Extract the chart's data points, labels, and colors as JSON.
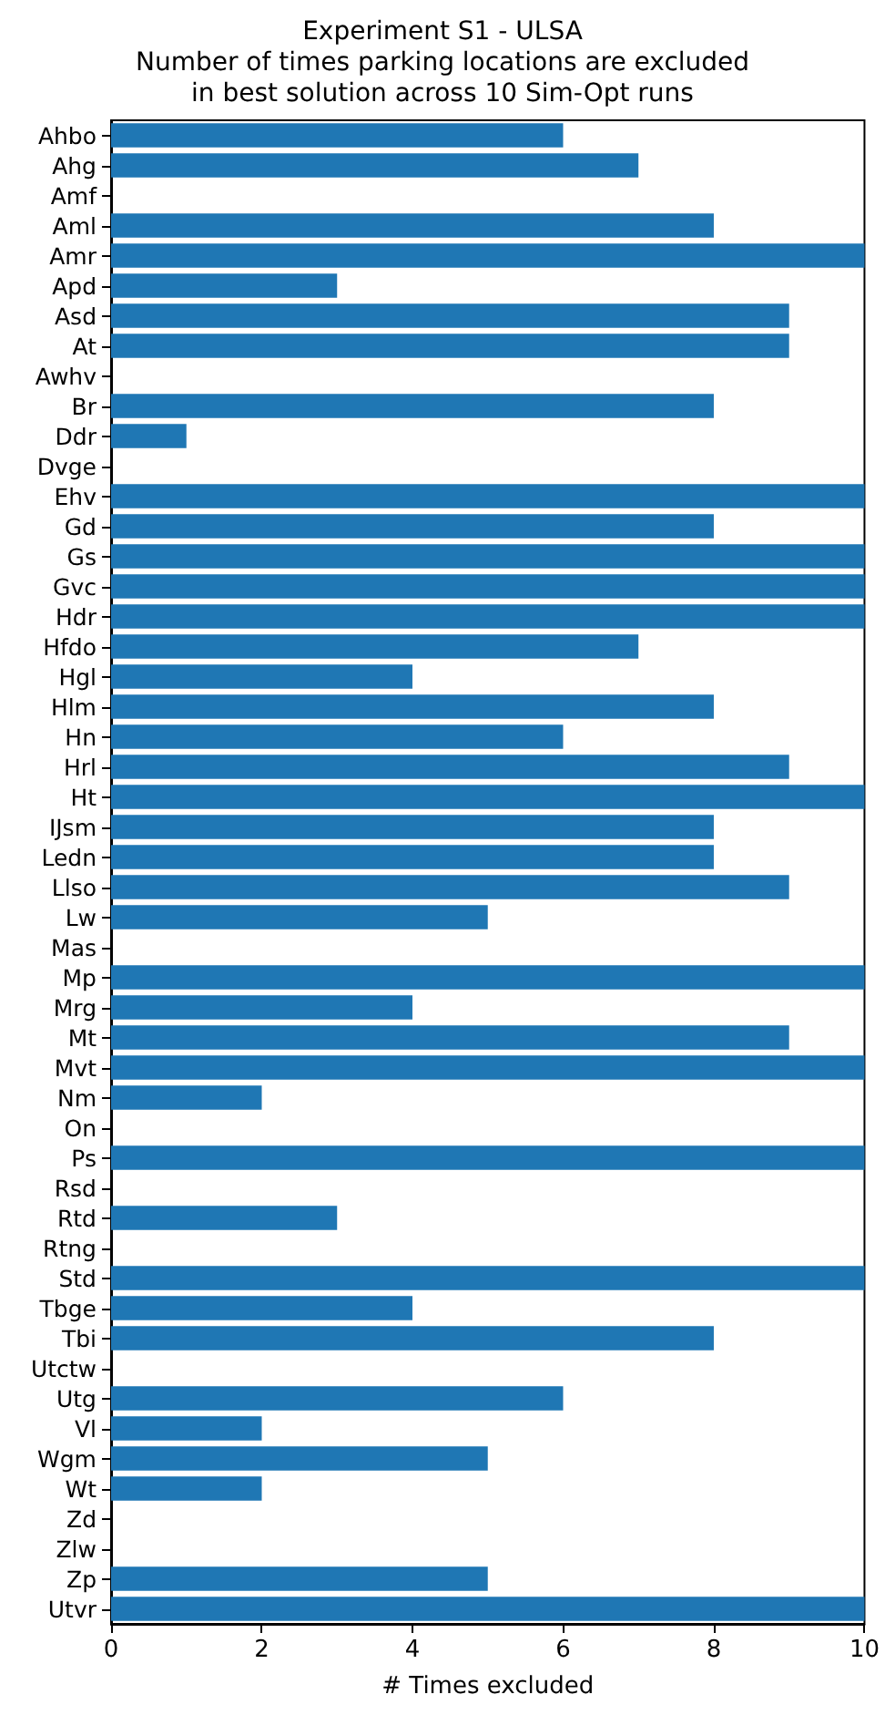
{
  "chart_data": {
    "type": "bar",
    "orientation": "horizontal",
    "title": "Experiment S1 - ULSA\nNumber of times parking locations are excluded\nin best solution across 10 Sim-Opt runs",
    "xlabel": "# Times excluded",
    "categories": [
      "Ahbo",
      "Ahg",
      "Amf",
      "Aml",
      "Amr",
      "Apd",
      "Asd",
      "At",
      "Awhv",
      "Br",
      "Ddr",
      "Dvge",
      "Ehv",
      "Gd",
      "Gs",
      "Gvc",
      "Hdr",
      "Hfdo",
      "Hgl",
      "Hlm",
      "Hn",
      "Hrl",
      "Ht",
      "IJsm",
      "Ledn",
      "Llso",
      "Lw",
      "Mas",
      "Mp",
      "Mrg",
      "Mt",
      "Mvt",
      "Nm",
      "On",
      "Ps",
      "Rsd",
      "Rtd",
      "Rtng",
      "Std",
      "Tbge",
      "Tbi",
      "Utctw",
      "Utg",
      "Vl",
      "Wgm",
      "Wt",
      "Zd",
      "Zlw",
      "Zp",
      "Utvr"
    ],
    "values": [
      6,
      7,
      0,
      8,
      10,
      3,
      9,
      9,
      0,
      8,
      1,
      0,
      10,
      8,
      10,
      10,
      10,
      7,
      4,
      8,
      6,
      9,
      10,
      8,
      8,
      9,
      5,
      0,
      10,
      4,
      9,
      10,
      2,
      0,
      10,
      0,
      3,
      0,
      10,
      4,
      8,
      0,
      6,
      2,
      5,
      2,
      0,
      0,
      5,
      10
    ],
    "color": "#1f77b4",
    "xlim": [
      0,
      10
    ],
    "xticks": [
      0,
      2,
      4,
      6,
      8,
      10
    ],
    "grid": false
  }
}
